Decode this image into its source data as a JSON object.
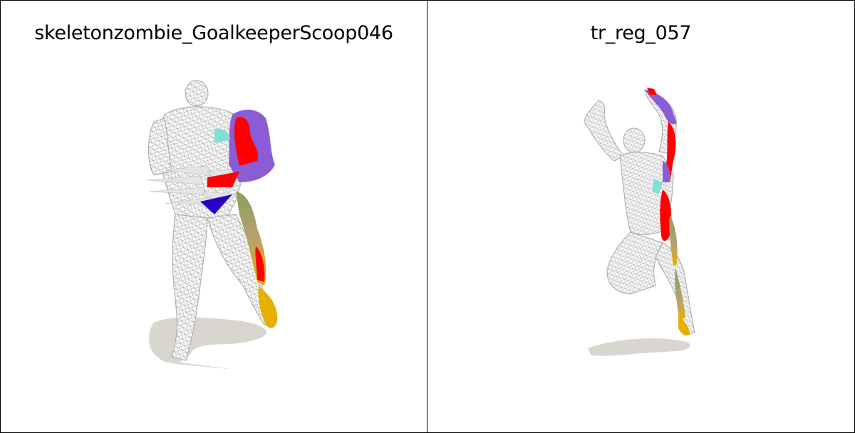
{
  "panels": [
    {
      "title": "skeletonzombie_GoalkeeperScoop046"
    },
    {
      "title": "tr_reg_057"
    }
  ],
  "colors": {
    "wireframe": "#b9b9b9",
    "shadow": "#d8d6cf",
    "red": "#ff0000",
    "purple": "#8a5cd6",
    "blue": "#2a00c8",
    "yellow": "#e6b000",
    "green": "#8aa060",
    "cyan": "#7fe0d8"
  }
}
